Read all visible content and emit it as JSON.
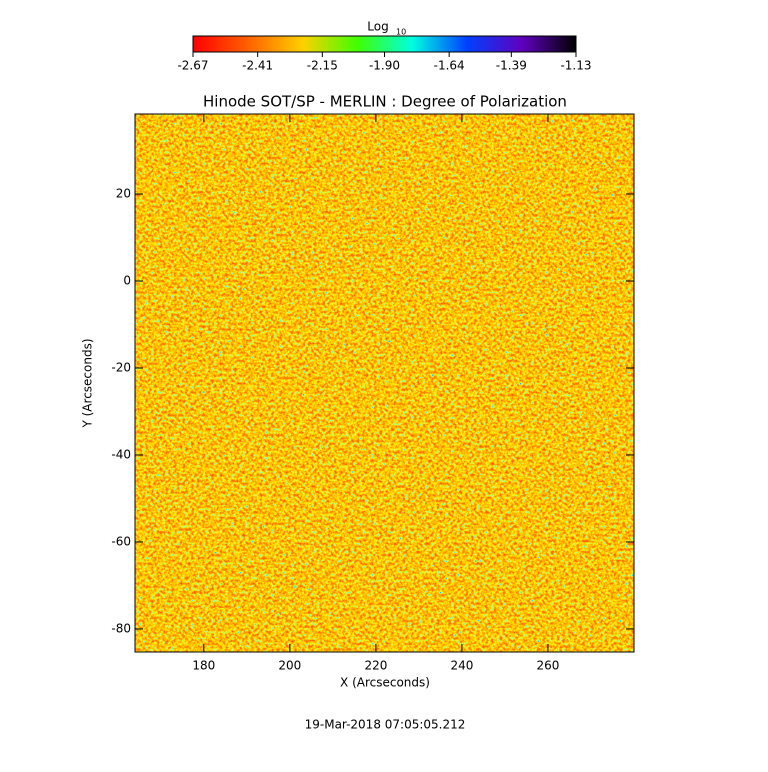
{
  "chart_data": {
    "type": "heatmap",
    "title": "Hinode SOT/SP - MERLIN : Degree of Polarization",
    "xlabel": "X (Arcseconds)",
    "ylabel": "Y (Arcseconds)",
    "footer": "19-Mar-2018 07:05:05.212",
    "colorbar": {
      "label": "Log",
      "label_sub": "10",
      "clim": [
        -2.67,
        -1.13
      ],
      "ticks": [
        -2.67,
        -2.41,
        -2.15,
        {
          "value": -1.9,
          "label": "-1.90"
        },
        -1.64,
        -1.39,
        -1.13
      ],
      "colormap": [
        "#ff0000",
        "#ff6000",
        "#ffd000",
        "#40ff00",
        "#00ffe0",
        "#0040ff",
        "#6000c0",
        "#000000"
      ]
    },
    "xlim": [
      164,
      280
    ],
    "xticks": [
      180,
      200,
      220,
      240,
      260
    ],
    "ylim": [
      -85.3,
      38.4
    ],
    "yticks": [
      20,
      0,
      -20,
      -40,
      -60,
      -80
    ]
  }
}
